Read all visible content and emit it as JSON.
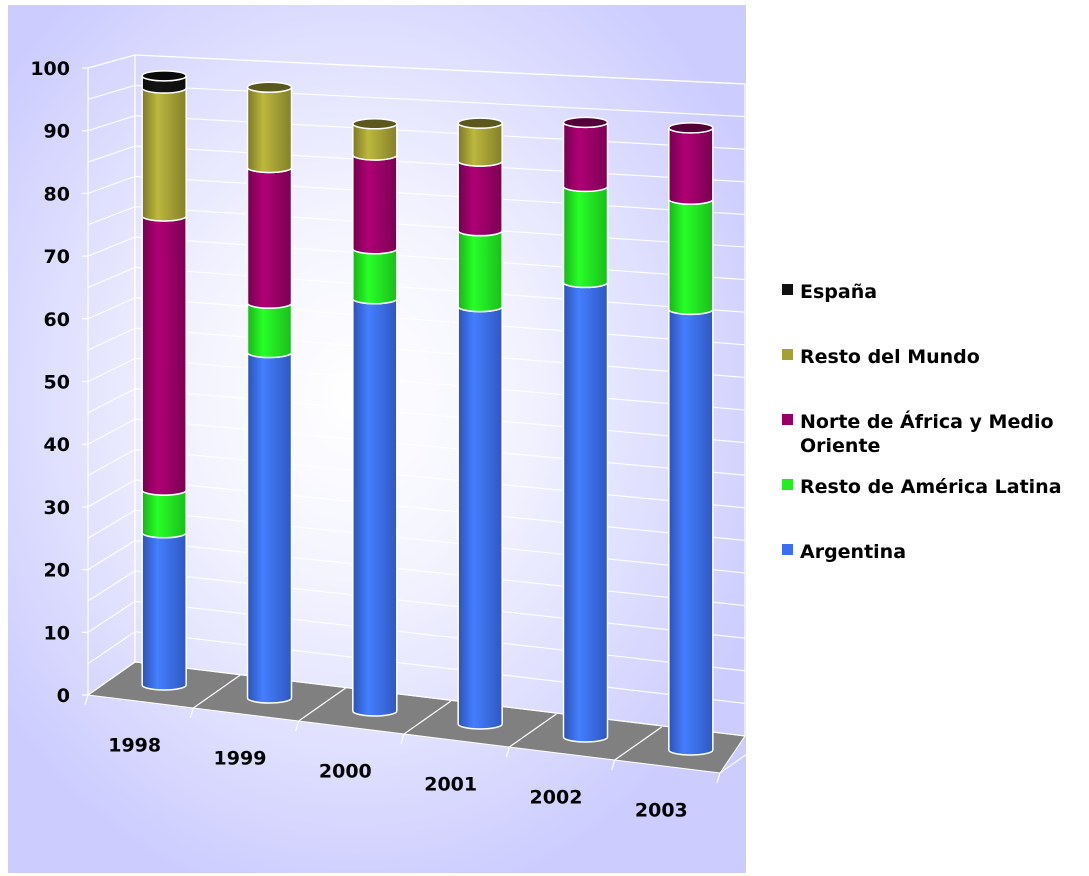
{
  "chart_data": {
    "type": "bar",
    "stacked": true,
    "three_d": true,
    "bar_shape": "cylinder",
    "categories": [
      "1998",
      "1999",
      "2000",
      "2001",
      "2002",
      "2003"
    ],
    "series": [
      {
        "name": "Argentina",
        "color": "#3b6ef0",
        "values": [
          25,
          56,
          66,
          66,
          71,
          68
        ]
      },
      {
        "name": "Resto de América Latina",
        "color": "#22ee22",
        "values": [
          7,
          8,
          8,
          12,
          15,
          17
        ]
      },
      {
        "name": "Norte de África y Medio Oriente",
        "color": "#990066",
        "values": [
          45,
          22,
          15,
          11,
          10,
          11
        ]
      },
      {
        "name": "Resto del Mundo",
        "color": "#a4a034",
        "values": [
          21,
          13,
          5,
          6,
          0,
          0
        ]
      },
      {
        "name": "España",
        "color": "#111111",
        "values": [
          2,
          0,
          0,
          0,
          0,
          0
        ]
      }
    ],
    "yticks": [
      0,
      10,
      20,
      30,
      40,
      50,
      60,
      70,
      80,
      90,
      100
    ],
    "ylim": [
      0,
      100
    ],
    "grid": true,
    "legend_position": "right",
    "legend_order": [
      "España",
      "Resto del Mundo",
      "Norte de África y Medio Oriente",
      "Resto de América Latina",
      "Argentina"
    ],
    "legend_lines": {
      "Norte de África y Medio Oriente": [
        "Norte de África y Medio",
        "Oriente"
      ]
    },
    "colors": {
      "plot_background": "#ccccff",
      "floor": "#808080",
      "grid": "#ffffff"
    }
  }
}
